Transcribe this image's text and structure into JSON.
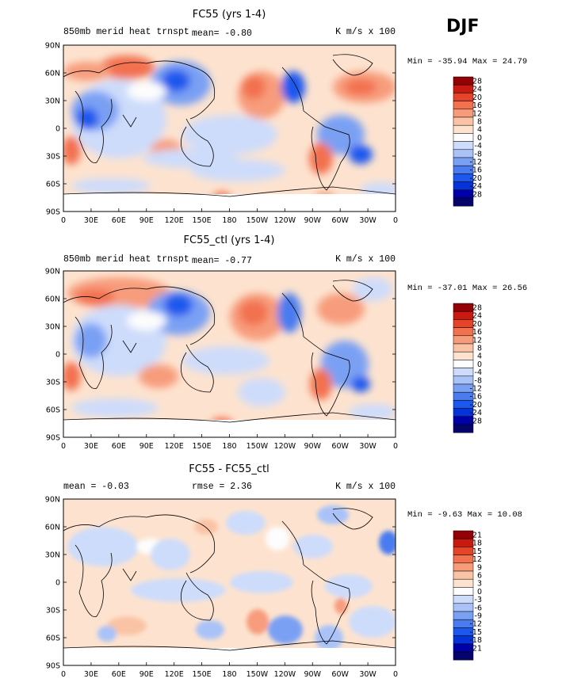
{
  "season": "DJF",
  "longitude_ticks": [
    "0",
    "30E",
    "60E",
    "90E",
    "120E",
    "150E",
    "180",
    "150W",
    "120W",
    "90W",
    "60W",
    "30W",
    "0"
  ],
  "latitude_ticks": [
    "90N",
    "60N",
    "30N",
    "0",
    "30S",
    "60S",
    "90S"
  ],
  "palette": [
    "#04046b",
    "#0000a8",
    "#0633d8",
    "#1c58ee",
    "#4a7cf0",
    "#7aa0f4",
    "#a9c2f8",
    "#cddcfb",
    "#fdfdfd",
    "#fde3cf",
    "#fbc3a6",
    "#f79c7b",
    "#f2714f",
    "#e54428",
    "#c81a10",
    "#930005"
  ],
  "panels": [
    {
      "title": "FC55 (yrs 1-4)",
      "left_text": "850mb merid heat trnspt",
      "mean_text": "mean=   -0.80",
      "units": "K m/s x 100",
      "stats": "Min = -35.94  Max =  24.79",
      "colorbar_labels": [
        "28",
        "24",
        "20",
        "16",
        "12",
        "8",
        "4",
        "0",
        "-4",
        "-8",
        "-12",
        "-16",
        "-20",
        "-24",
        "-28"
      ]
    },
    {
      "title": "FC55_ctl (yrs 1-4)",
      "left_text": "850mb merid heat trnspt",
      "mean_text": "mean=   -0.77",
      "units": "K m/s x 100",
      "stats": "Min = -37.01  Max =  26.56",
      "colorbar_labels": [
        "28",
        "24",
        "20",
        "16",
        "12",
        "8",
        "4",
        "0",
        "-4",
        "-8",
        "-12",
        "-16",
        "-20",
        "-24",
        "-28"
      ]
    },
    {
      "title": "FC55 - FC55_ctl",
      "left_text": "mean =   -0.03",
      "mean_text": "rmse =    2.36",
      "units": "K m/s x 100",
      "stats": "Min =  -9.63 Max =  10.08",
      "colorbar_labels": [
        "21",
        "18",
        "15",
        "12",
        "9",
        "6",
        "3",
        "0",
        "-3",
        "-6",
        "-9",
        "-12",
        "-15",
        "-18",
        "-21"
      ]
    }
  ],
  "chart_data": [
    {
      "type": "heatmap",
      "title": "FC55 (yrs 1-4)",
      "variable": "850mb merid heat trnspt",
      "units": "K m/s x 100",
      "mean": -0.8,
      "min": -35.94,
      "max": 24.79,
      "levels": [
        -28,
        -24,
        -20,
        -16,
        -12,
        -8,
        -4,
        0,
        4,
        8,
        12,
        16,
        20,
        24,
        28
      ],
      "x_range": [
        0,
        360
      ],
      "y_range": [
        -90,
        90
      ]
    },
    {
      "type": "heatmap",
      "title": "FC55_ctl (yrs 1-4)",
      "variable": "850mb merid heat trnspt",
      "units": "K m/s x 100",
      "mean": -0.77,
      "min": -37.01,
      "max": 26.56,
      "levels": [
        -28,
        -24,
        -20,
        -16,
        -12,
        -8,
        -4,
        0,
        4,
        8,
        12,
        16,
        20,
        24,
        28
      ],
      "x_range": [
        0,
        360
      ],
      "y_range": [
        -90,
        90
      ]
    },
    {
      "type": "heatmap",
      "title": "FC55 - FC55_ctl",
      "units": "K m/s x 100",
      "mean": -0.03,
      "rmse": 2.36,
      "min": -9.63,
      "max": 10.08,
      "levels": [
        -21,
        -18,
        -15,
        -12,
        -9,
        -6,
        -3,
        0,
        3,
        6,
        9,
        12,
        15,
        18,
        21
      ],
      "x_range": [
        0,
        360
      ],
      "y_range": [
        -90,
        90
      ]
    }
  ]
}
